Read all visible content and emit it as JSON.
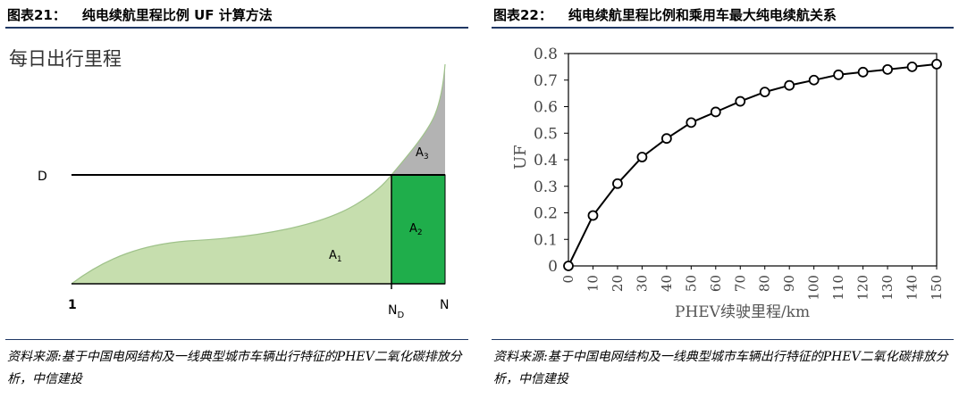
{
  "left_panel": {
    "figure_label": "图表21：",
    "title": "纯电续航里程比例 UF 计算方法",
    "source": "资料来源:基于中国电网结构及一线典型城市车辆出行特征的PHEV二氧化碳排放分析，中信建投"
  },
  "right_panel": {
    "figure_label": "图表22：",
    "title": "纯电续航里程比例和乘用车最大纯电续航关系",
    "source": "资料来源:基于中国电网结构及一线典型城市车辆出行特征的PHEV二氧化碳排放分析，中信建投"
  },
  "colors": {
    "title_rule": "#1f3864",
    "area_a1": "#c6deae",
    "area_a2": "#1fae4b",
    "area_a3": "#b3b3b3",
    "line": "#000000",
    "marker_fill": "#ffffff"
  },
  "chart_data": [
    {
      "type": "area",
      "ylabel": "每日出行里程",
      "y_marker_label": "D",
      "x_tick_labels": [
        "1",
        "N",
        "N",
        "D"
      ],
      "region_labels": [
        "A",
        "1",
        "A",
        "2",
        "A",
        "3"
      ],
      "description_values": {
        "x_positions": [
          "1",
          "ND",
          "N"
        ],
        "threshold": "D"
      }
    },
    {
      "type": "line",
      "xlabel": "PHEV续驶里程/km",
      "ylabel": "UF",
      "x": [
        0,
        10,
        20,
        30,
        40,
        50,
        60,
        70,
        80,
        90,
        100,
        110,
        120,
        130,
        140,
        150
      ],
      "y": [
        0,
        0.19,
        0.31,
        0.41,
        0.48,
        0.54,
        0.58,
        0.62,
        0.655,
        0.68,
        0.7,
        0.72,
        0.73,
        0.74,
        0.75,
        0.76
      ],
      "xlim": [
        0,
        150
      ],
      "ylim": [
        0,
        0.8
      ],
      "y_ticks": [
        "0",
        "0.1",
        "0.2",
        "0.3",
        "0.4",
        "0.5",
        "0.6",
        "0.7",
        "0.8"
      ],
      "x_ticks": [
        "0",
        "10",
        "20",
        "30",
        "40",
        "50",
        "60",
        "70",
        "80",
        "90",
        "100",
        "110",
        "120",
        "130",
        "140",
        "150"
      ],
      "grid": false,
      "marker": "circle"
    }
  ]
}
